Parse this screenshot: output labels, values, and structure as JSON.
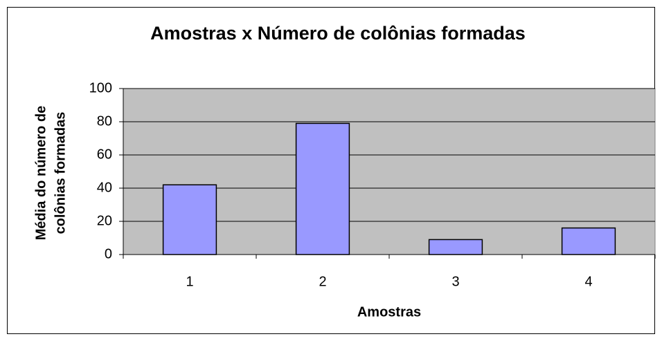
{
  "chart_data": {
    "type": "bar",
    "title": "Amostras x Número de colônias formadas",
    "xlabel": "Amostras",
    "ylabel": [
      "Média do número de",
      "colônias formadas"
    ],
    "categories": [
      "1",
      "2",
      "3",
      "4"
    ],
    "values": [
      42,
      79,
      9,
      16
    ],
    "color": "#9999ff",
    "ylim": [
      0,
      100
    ],
    "yticks": [
      0,
      20,
      40,
      60,
      80,
      100
    ],
    "grid": true
  }
}
